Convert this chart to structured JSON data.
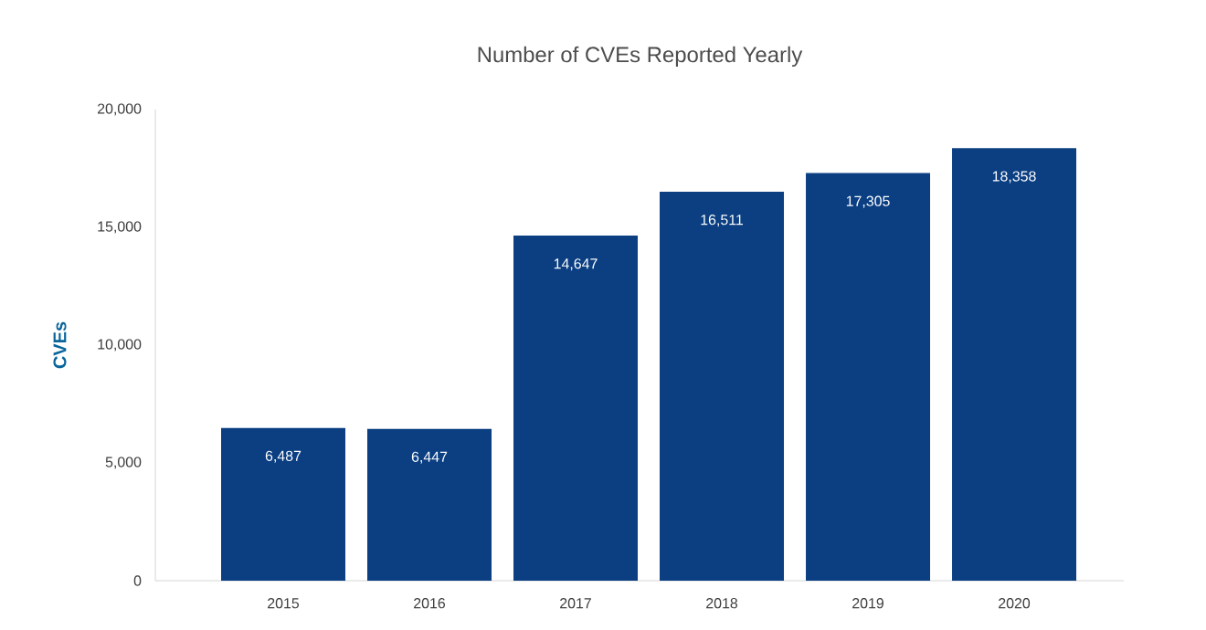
{
  "chart_data": {
    "type": "bar",
    "title": "Number of CVEs Reported Yearly",
    "ylabel": "CVEs",
    "categories": [
      "2015",
      "2016",
      "2017",
      "2018",
      "2019",
      "2020"
    ],
    "values": [
      6487,
      6447,
      14647,
      16511,
      17305,
      18358
    ],
    "value_labels": [
      "6,487",
      "6,447",
      "14,647",
      "16,511",
      "17,305",
      "18,358"
    ],
    "color": "#0b3f82",
    "ylim": [
      0,
      20000
    ],
    "yticks": [
      0,
      {
        "value": 5000,
        "label": "5,000"
      },
      {
        "value": 10000,
        "label": "10,000"
      },
      {
        "value": 15000,
        "label": "15,000"
      },
      {
        "value": 20000,
        "label": "20,000"
      }
    ],
    "grid": false
  }
}
